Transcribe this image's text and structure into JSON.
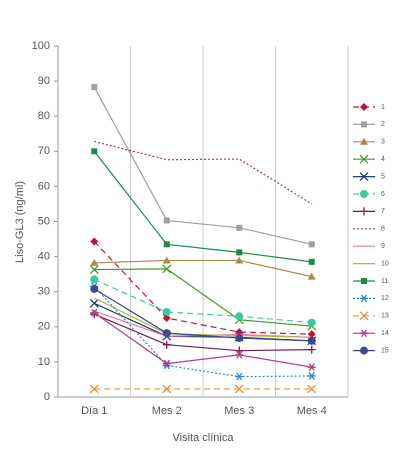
{
  "chart_data": {
    "type": "line",
    "y_label": "Liso-GL3 (ng/ml)",
    "x_label": "Visita clínica",
    "categories": [
      "Día 1",
      "Mes 2",
      "Mes 3",
      "Mes 4"
    ],
    "ylim": [
      0,
      100
    ],
    "yticks": [
      0,
      10,
      20,
      30,
      40,
      50,
      60,
      70,
      80,
      90,
      100
    ],
    "legend": "right",
    "series": [
      {
        "name": "1",
        "color": "#c0143c",
        "marker": "diamond",
        "dash": "dashed",
        "values": [
          44.3,
          22.5,
          18.5,
          17.9
        ]
      },
      {
        "name": "2",
        "color": "#a0a0a0",
        "marker": "square",
        "dash": "solid",
        "values": [
          88.3,
          50.3,
          48.2,
          43.5
        ]
      },
      {
        "name": "3",
        "color": "#b08850",
        "marker": "triangle",
        "dash": "solid",
        "values": [
          38.2,
          38.9,
          38.9,
          34.3
        ]
      },
      {
        "name": "4",
        "color": "#4a9a2a",
        "marker": "x",
        "dash": "solid",
        "values": [
          36.3,
          36.5,
          22.0,
          20.2
        ]
      },
      {
        "name": "5",
        "color": "#1f3c6e",
        "marker": "x",
        "dash": "solid",
        "values": [
          26.7,
          17.3,
          17.0,
          16.0
        ]
      },
      {
        "name": "6",
        "color": "#3cc8a0",
        "marker": "circle",
        "dash": "dashed",
        "values": [
          33.5,
          24.2,
          23.0,
          21.2
        ]
      },
      {
        "name": "7",
        "color": "#7a1a4a",
        "marker": "plus",
        "dash": "solid",
        "values": [
          23.6,
          14.9,
          13.2,
          13.5
        ]
      },
      {
        "name": "8",
        "color": "#a0406a",
        "marker": "none",
        "dash": "dotted",
        "values": [
          72.8,
          67.6,
          67.8,
          55.0
        ]
      },
      {
        "name": "9",
        "color": "#e07aa8",
        "marker": "none",
        "dash": "solid",
        "values": [
          24.5,
          17.3,
          17.8,
          17.0
        ]
      },
      {
        "name": "10",
        "color": "#b8b040",
        "marker": "none",
        "dash": "solid",
        "values": [
          28.2,
          18.0,
          17.5,
          17.0
        ]
      },
      {
        "name": "11",
        "color": "#1a8a4a",
        "marker": "square",
        "dash": "solid",
        "values": [
          70.0,
          43.5,
          41.2,
          38.5
        ]
      },
      {
        "name": "12",
        "color": "#2a8ad0",
        "marker": "star",
        "dash": "dotted",
        "values": [
          31.5,
          9.0,
          5.8,
          6.0
        ]
      },
      {
        "name": "13",
        "color": "#e8903a",
        "marker": "x",
        "dash": "dashed",
        "values": [
          2.3,
          2.3,
          2.3,
          2.3
        ]
      },
      {
        "name": "14",
        "color": "#b03a8a",
        "marker": "star",
        "dash": "solid",
        "values": [
          24.0,
          9.5,
          12.0,
          8.5
        ]
      },
      {
        "name": "15",
        "color": "#3a4a8a",
        "marker": "circle",
        "dash": "solid",
        "values": [
          30.8,
          18.2,
          16.8,
          16.0
        ]
      }
    ]
  }
}
